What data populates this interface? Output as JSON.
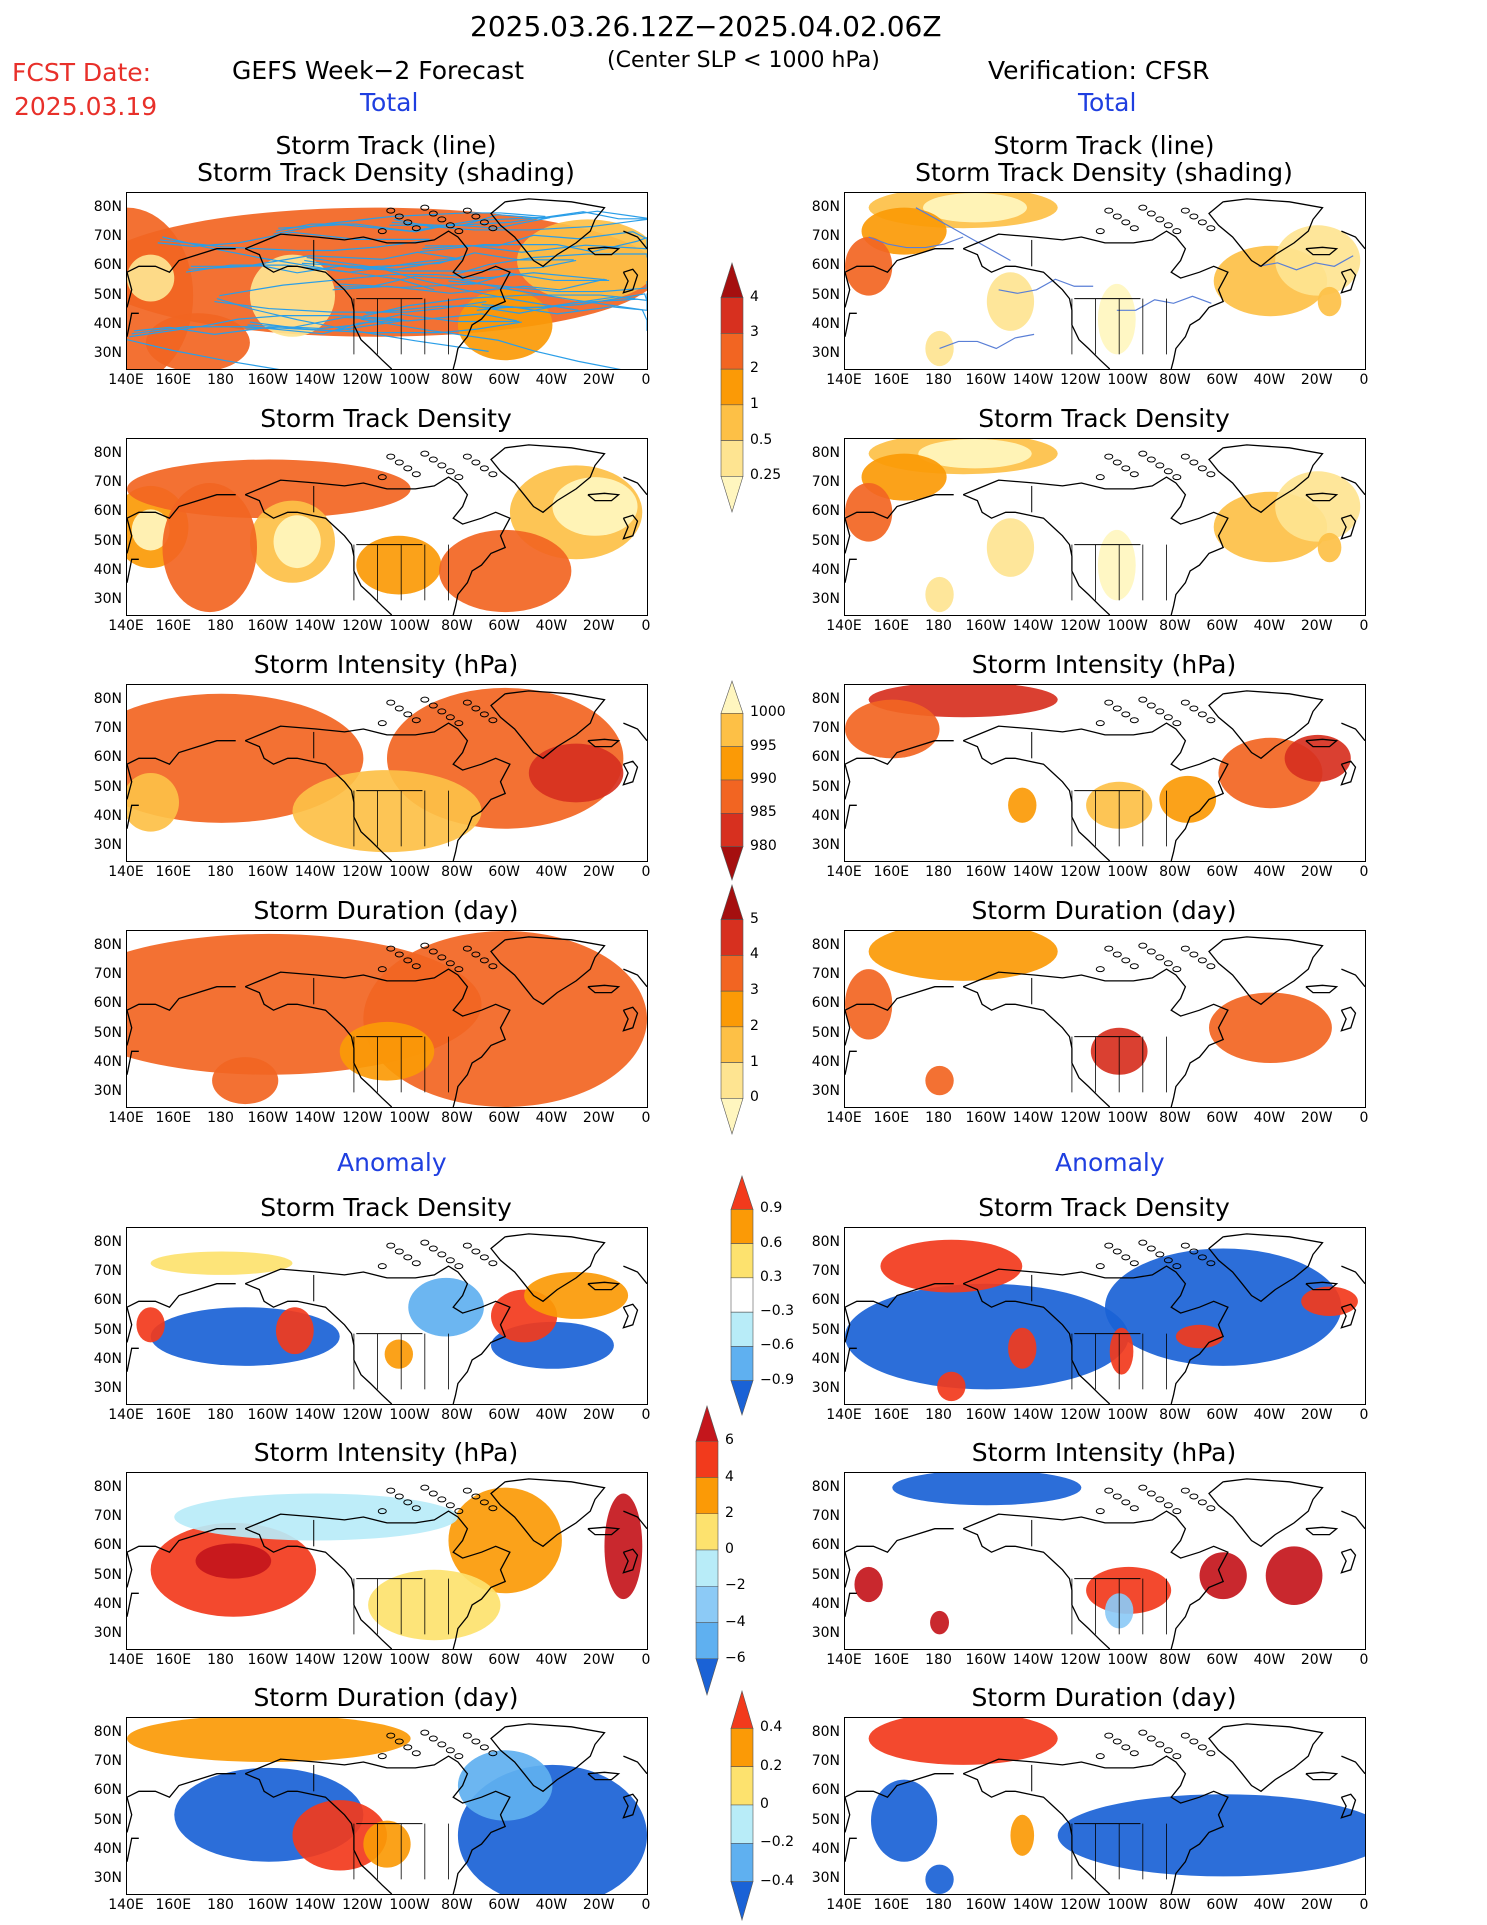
{
  "header": {
    "date_range": "2025.03.26.12Z−2025.04.02.06Z",
    "fcst_label": "FCST Date:",
    "fcst_date": "2025.03.19",
    "left_title": "GEFS Week−2 Forecast",
    "subtitle": "(Center SLP < 1000 hPa)",
    "right_title": "Verification: CFSR",
    "total_label": "Total",
    "anomaly_label": "Anomaly"
  },
  "panel_titles": {
    "track": [
      "Storm Track (line)",
      "Storm Track Density (shading)"
    ],
    "density": "Storm Track Density",
    "intensity": "Storm Intensity (hPa)",
    "duration": "Storm Duration (day)"
  },
  "axes": {
    "lat_ticks": [
      "80N",
      "70N",
      "60N",
      "50N",
      "40N",
      "30N"
    ],
    "lon_ticks": [
      "140E",
      "160E",
      "180",
      "160W",
      "140W",
      "120W",
      "100W",
      "80W",
      "60W",
      "40W",
      "20W",
      "0"
    ]
  },
  "colorbars": {
    "density": {
      "labels": [
        "4",
        "3",
        "2",
        "1",
        "0.5",
        "0.25"
      ],
      "colors": [
        "#a50f0f",
        "#d7301f",
        "#f26522",
        "#fb9a06",
        "#fdc046",
        "#fee491",
        "#fff6bf"
      ]
    },
    "intensity": {
      "labels": [
        "1000",
        "995",
        "990",
        "985",
        "980"
      ],
      "colors": [
        "#fff6bf",
        "#fdc046",
        "#fb9a06",
        "#f26522",
        "#d7301f",
        "#a50f0f"
      ]
    },
    "duration": {
      "labels": [
        "5",
        "4",
        "3",
        "2",
        "1",
        "0"
      ],
      "colors": [
        "#a50f0f",
        "#d7301f",
        "#f26522",
        "#fb9a06",
        "#fdc046",
        "#fee491",
        "#fff6bf"
      ]
    },
    "density_anom": {
      "labels": [
        "0.9",
        "0.6",
        "0.3",
        "−0.3",
        "−0.6",
        "−0.9"
      ],
      "colors": [
        "#f23a1c",
        "#fb9a06",
        "#fde26e",
        "#ffffff",
        "#b8ecf8",
        "#5fb0f0",
        "#1a62d6"
      ]
    },
    "intensity_anom": {
      "labels": [
        "6",
        "4",
        "2",
        "0",
        "−2",
        "−4",
        "−6"
      ],
      "colors": [
        "#c4161c",
        "#f23a1c",
        "#fb9a06",
        "#fde26e",
        "#b8ecf8",
        "#8ccaf6",
        "#5fb0f0",
        "#1a62d6"
      ]
    },
    "duration_anom": {
      "labels": [
        "0.4",
        "0.2",
        "0",
        "−0.2",
        "−0.4"
      ],
      "colors": [
        "#f23a1c",
        "#fb9a06",
        "#fde26e",
        "#b8ecf8",
        "#5fb0f0",
        "#1a62d6"
      ]
    }
  }
}
